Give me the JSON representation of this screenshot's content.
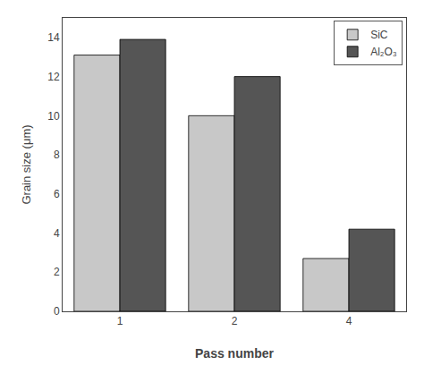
{
  "chart_data": {
    "type": "bar",
    "xlabel": "Pass number",
    "ylabel": "Grain size (μm)",
    "categories": [
      "1",
      "2",
      "4"
    ],
    "series": [
      {
        "name": "SiC",
        "color": "#c8c8c8",
        "values": [
          13.1,
          10.0,
          2.7
        ]
      },
      {
        "name": "Al₂O₃",
        "color": "#555555",
        "values": [
          13.9,
          12.0,
          4.2
        ]
      }
    ],
    "ylim": [
      0,
      15
    ],
    "yticks": [
      0,
      2,
      4,
      6,
      8,
      10,
      12,
      14
    ],
    "grid": false,
    "legend": "upper right"
  }
}
